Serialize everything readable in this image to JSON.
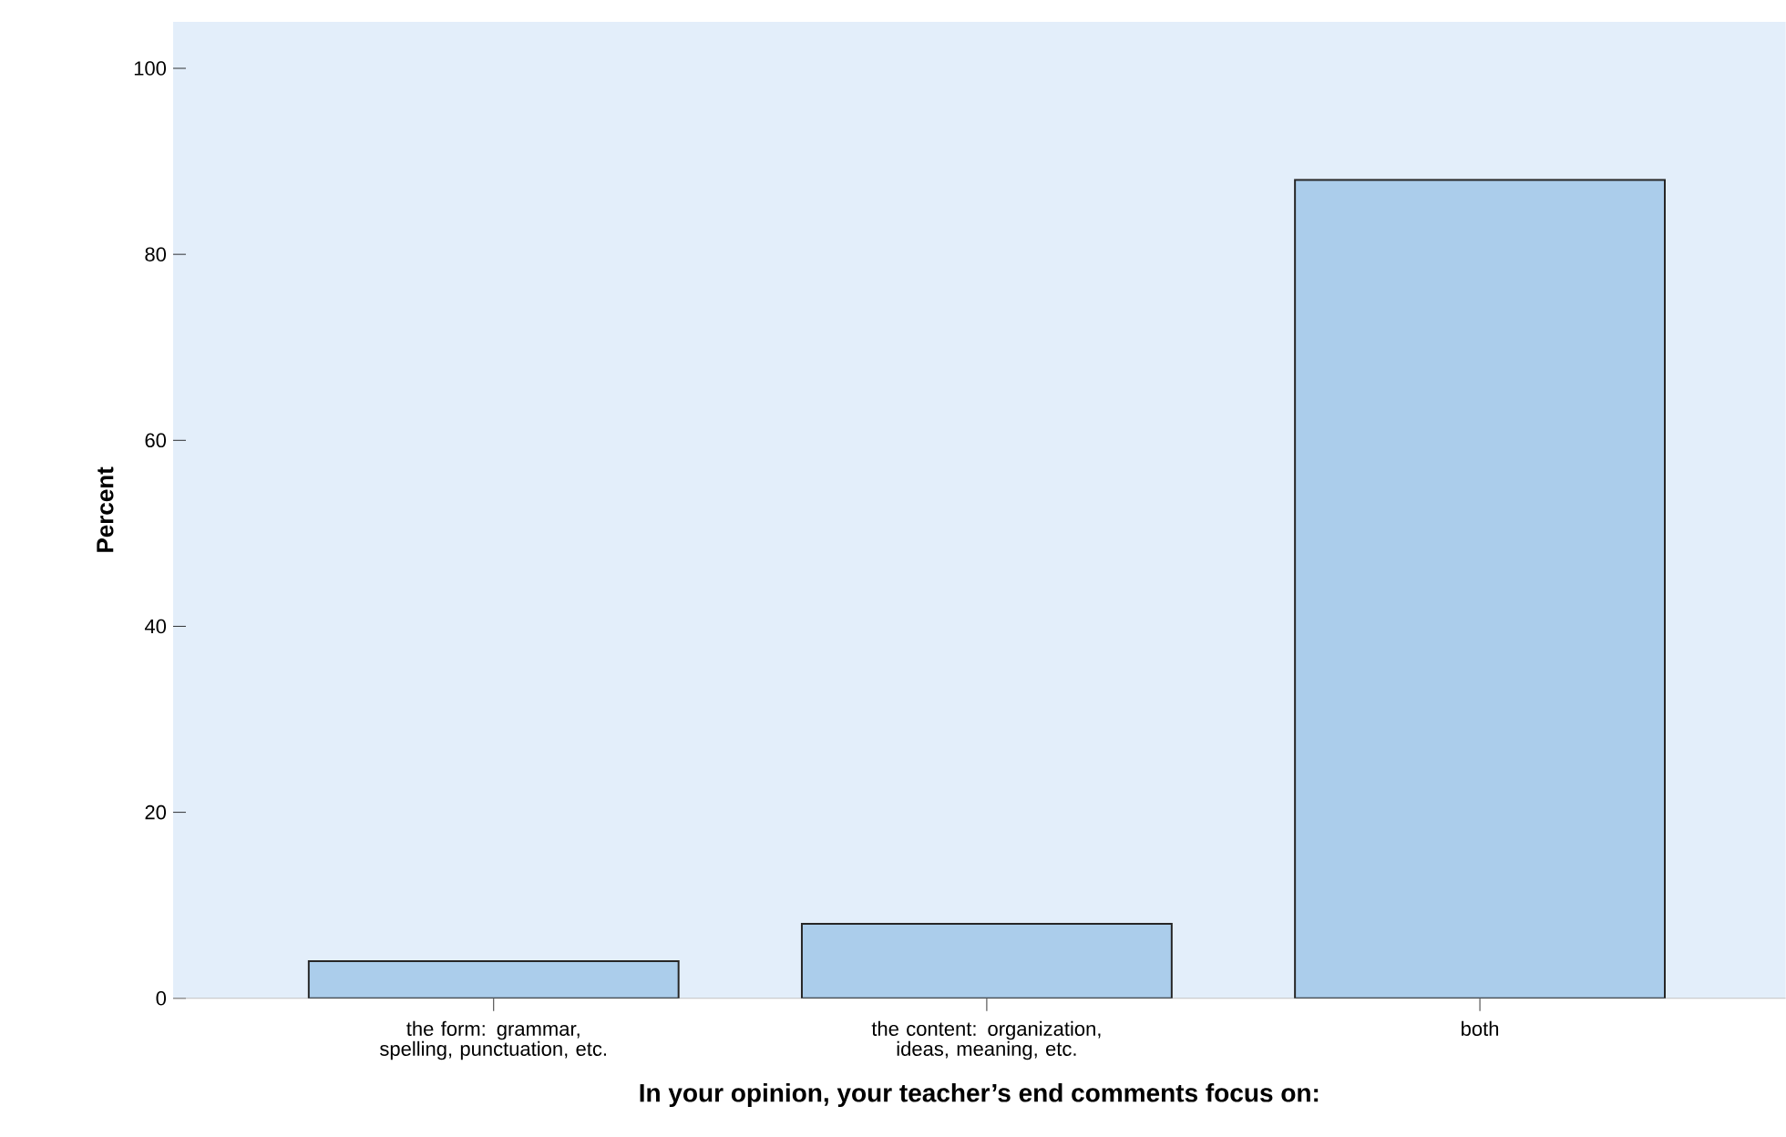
{
  "chart_data": {
    "type": "bar",
    "categories": [
      "the form: grammar, spelling, punctuation, etc.",
      "the content: organization, ideas, meaning, etc.",
      "both"
    ],
    "values": [
      4,
      8,
      88
    ],
    "color": "#abcdeb",
    "xlabel": "In your opinion, your teacher’s end comments focus on:",
    "ylabel": "Percent",
    "ylim": [
      0,
      105
    ],
    "yticks": [
      0,
      20,
      40,
      60,
      80,
      100
    ],
    "grid": false
  }
}
